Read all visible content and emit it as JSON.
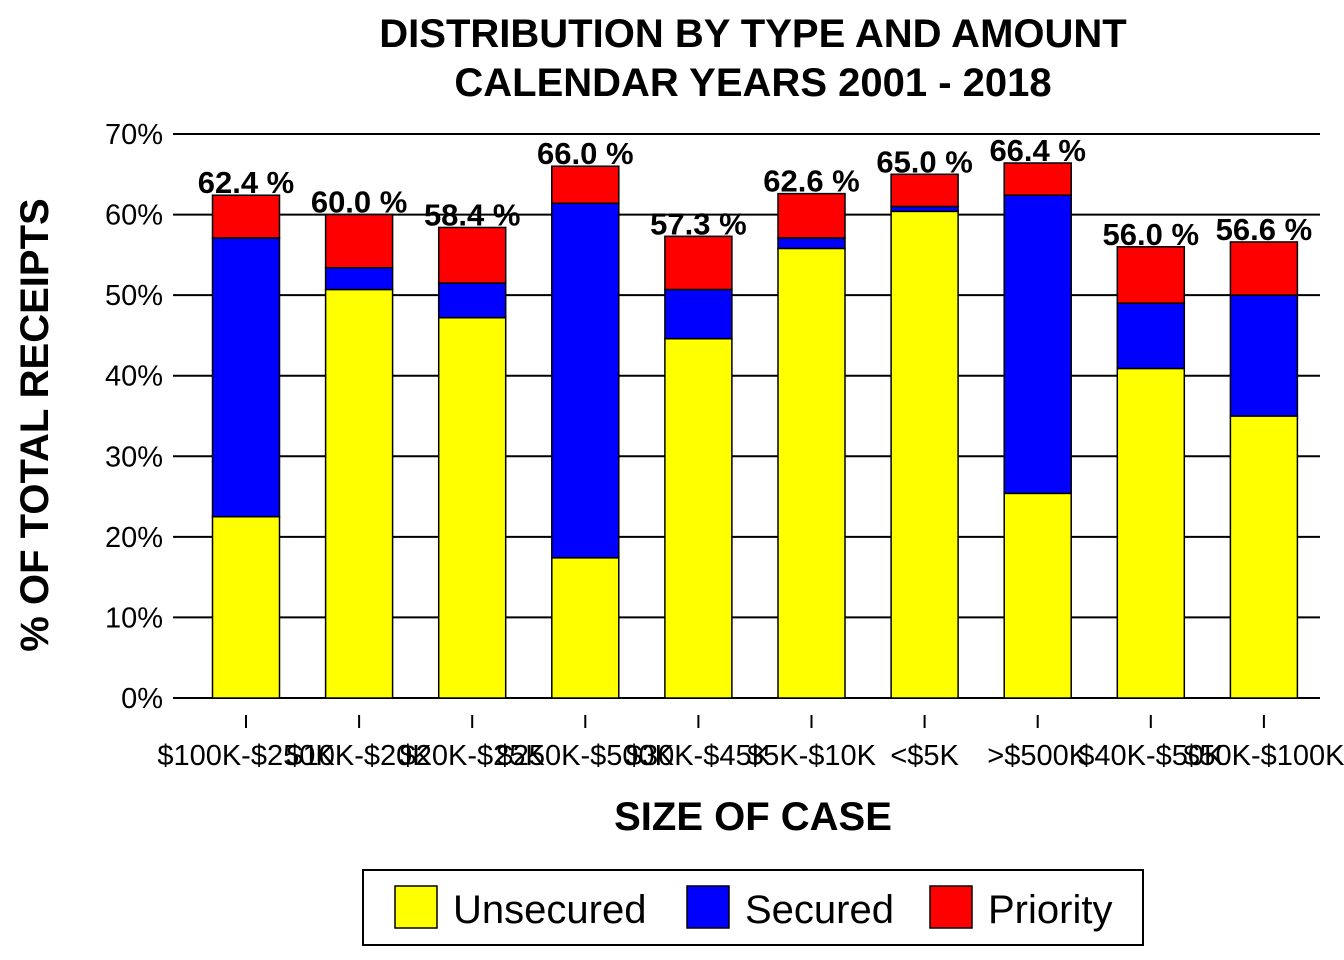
{
  "chart_data": {
    "type": "bar",
    "stacked": true,
    "title": [
      "DISTRIBUTION BY TYPE AND AMOUNT",
      "CALENDAR YEARS 2001 - 2018"
    ],
    "xlabel": "SIZE OF CASE",
    "ylabel": "% OF TOTAL RECEIPTS",
    "ylim": [
      0,
      70
    ],
    "yticks": [
      0,
      10,
      20,
      30,
      40,
      50,
      60,
      70
    ],
    "ytick_labels": [
      "0%",
      "10%",
      "20%",
      "30%",
      "40%",
      "50%",
      "60%",
      "70%"
    ],
    "grid": "horizontal",
    "legend_position": "bottom",
    "categories": [
      "$100K-$250K",
      "$10K-$20K",
      "$20K-$25K",
      "$250K-$500K",
      "$30K-$45K",
      "$5K-$10K",
      "<$5K",
      ">$500K",
      "$40K-$50K",
      "$50K-$100K"
    ],
    "series": [
      {
        "name": "Unsecured",
        "color": "#FFFF00",
        "values": [
          22.5,
          50.7,
          47.2,
          17.4,
          44.6,
          55.8,
          60.4,
          25.4,
          40.9,
          35.0
        ]
      },
      {
        "name": "Secured",
        "color": "#0000FF",
        "values": [
          34.6,
          2.7,
          4.3,
          44.0,
          6.1,
          1.3,
          0.6,
          37.0,
          8.1,
          15.0
        ]
      },
      {
        "name": "Priority",
        "color": "#FF0000",
        "values": [
          5.3,
          6.6,
          6.9,
          4.6,
          6.6,
          5.5,
          4.0,
          4.0,
          7.0,
          6.6
        ]
      }
    ],
    "totals": [
      62.4,
      60.0,
      58.4,
      66.0,
      57.3,
      62.6,
      65.0,
      66.4,
      56.0,
      56.6
    ],
    "total_labels": [
      "62.4 %",
      "60.0 %",
      "58.4 %",
      "66.0 %",
      "57.3 %",
      "62.6 %",
      "65.0 %",
      "66.4 %",
      "56.0 %",
      "56.6 %"
    ]
  }
}
